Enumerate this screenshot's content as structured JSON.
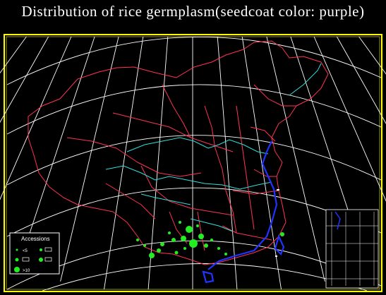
{
  "title": "Distribution of rice germplasm(seedcoat color: purple)",
  "legend": {
    "title": "Accessions",
    "entries": [
      {
        "label": "<5"
      },
      {
        "label": ""
      },
      {
        "label": ""
      },
      {
        "label": ""
      },
      {
        "label": ">10"
      }
    ]
  },
  "colors": {
    "frame": "#ffff00",
    "graticule": "#ffffff",
    "borders": "#ff3355",
    "rivers": "#33dddd",
    "coast": "#2233ff",
    "points": "#22ee22"
  }
}
